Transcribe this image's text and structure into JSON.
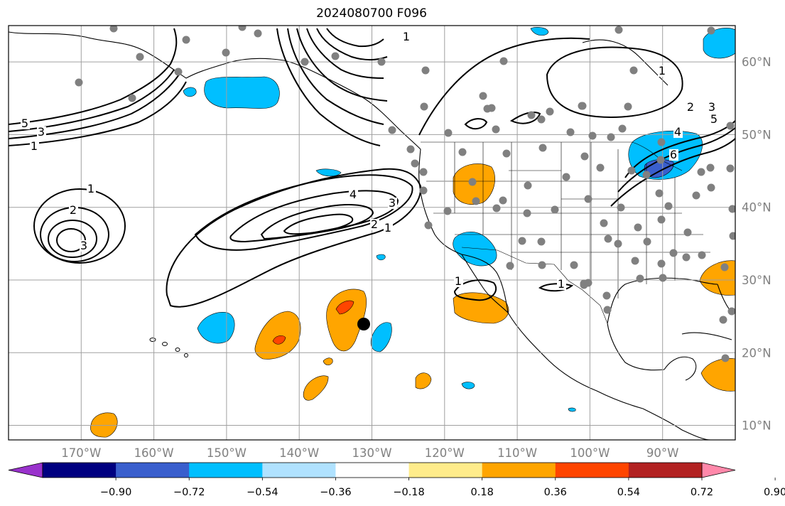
{
  "title": "2024080700 F096",
  "map": {
    "lon_range": [
      -180,
      -80
    ],
    "lat_range": [
      8,
      65
    ],
    "lon_ticks": [
      -170,
      -160,
      -150,
      -140,
      -130,
      -120,
      -110,
      -100,
      -90
    ],
    "lon_tick_labels": [
      "170°W",
      "160°W",
      "150°W",
      "140°W",
      "130°W",
      "120°W",
      "110°W",
      "100°W",
      "90°W"
    ],
    "lat_ticks": [
      10,
      20,
      30,
      40,
      50,
      60
    ],
    "lat_tick_labels": [
      "10°N",
      "20°N",
      "30°N",
      "40°N",
      "50°N",
      "60°N"
    ],
    "grid": true,
    "colors": {
      "grid": "#a0a0a0",
      "coast": "#000000",
      "contour": "#000000",
      "station": "#808080",
      "marker": "#000000"
    },
    "contour_labels": [
      "5",
      "3",
      "1",
      "1",
      "2",
      "3",
      "4",
      "3",
      "2",
      "1",
      "1",
      "2",
      "3",
      "4",
      "5",
      "6",
      "1",
      "1",
      "1"
    ]
  },
  "colorbar": {
    "levels": [
      -0.9,
      -0.72,
      -0.54,
      -0.36,
      -0.18,
      0.18,
      0.36,
      0.54,
      0.72,
      0.9
    ],
    "tick_labels": [
      "−0.90",
      "−0.72",
      "−0.54",
      "−0.36",
      "−0.18",
      "0.18",
      "0.36",
      "0.54",
      "0.72",
      "0.90"
    ],
    "colors": [
      "#9932cc",
      "#000080",
      "#3a5fcd",
      "#00bfff",
      "#b0e2ff",
      "#ffffff",
      "#ffec8b",
      "#ffa500",
      "#ff4500",
      "#b22222",
      "#ff88aa"
    ],
    "extend": "both"
  }
}
